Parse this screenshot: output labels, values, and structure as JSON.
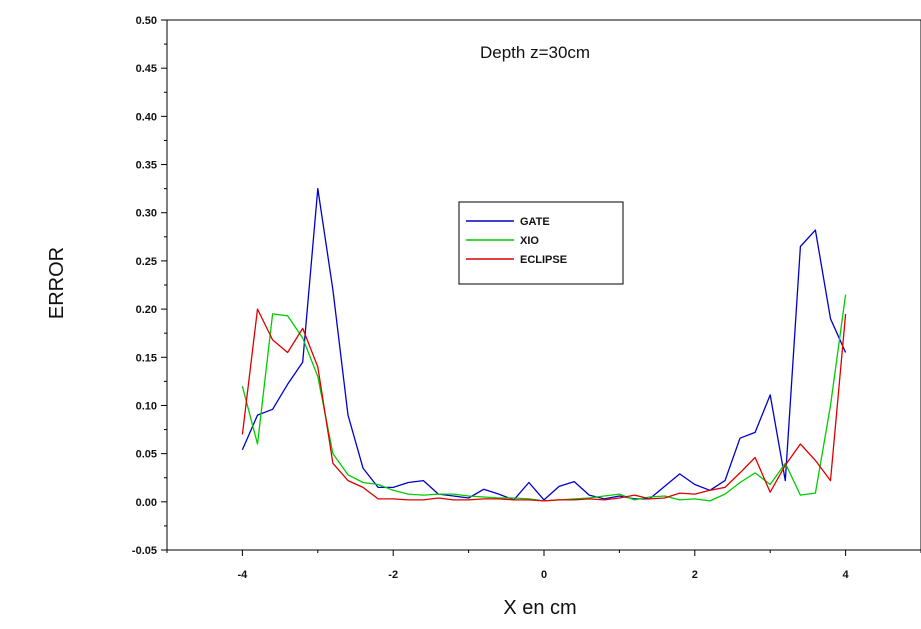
{
  "chart_data": {
    "type": "line",
    "annotation": "Depth z=30cm",
    "xlabel": "X en cm",
    "ylabel": "ERROR",
    "xlim": [
      -5.0,
      5.0
    ],
    "ylim": [
      -0.05,
      0.5
    ],
    "xticks": [
      -4,
      -2,
      0,
      2,
      4
    ],
    "xtick_labels": [
      "-4",
      "-2",
      "0",
      "2",
      "4"
    ],
    "yticks": [
      -0.05,
      0.0,
      0.05,
      0.1,
      0.15,
      0.2,
      0.25,
      0.3,
      0.35,
      0.4,
      0.45,
      0.5
    ],
    "ytick_labels": [
      "-0.05",
      "0.00",
      "0.05",
      "0.10",
      "0.15",
      "0.20",
      "0.25",
      "0.30",
      "0.35",
      "0.40",
      "0.45",
      "0.50"
    ],
    "grid": false,
    "legend_position": "center",
    "series": [
      {
        "name": "GATE",
        "color": "#0000cc",
        "x": [
          -4.0,
          -3.8,
          -3.6,
          -3.4,
          -3.2,
          -3.0,
          -2.8,
          -2.6,
          -2.4,
          -2.2,
          -2.0,
          -1.8,
          -1.6,
          -1.4,
          -1.2,
          -1.0,
          -0.8,
          -0.6,
          -0.4,
          -0.2,
          0.0,
          0.2,
          0.4,
          0.6,
          0.8,
          1.0,
          1.2,
          1.4,
          1.6,
          1.8,
          2.0,
          2.2,
          2.4,
          2.6,
          2.8,
          3.0,
          3.2,
          3.4,
          3.6,
          3.8,
          4.0
        ],
        "y": [
          0.054,
          0.09,
          0.096,
          0.122,
          0.145,
          0.325,
          0.22,
          0.09,
          0.035,
          0.015,
          0.015,
          0.02,
          0.022,
          0.008,
          0.006,
          0.004,
          0.013,
          0.008,
          0.002,
          0.02,
          0.002,
          0.016,
          0.021,
          0.007,
          0.003,
          0.006,
          0.003,
          0.003,
          0.016,
          0.029,
          0.018,
          0.012,
          0.022,
          0.066,
          0.072,
          0.111,
          0.022,
          0.265,
          0.282,
          0.19,
          0.155
        ]
      },
      {
        "name": "XIO",
        "color": "#00cc00",
        "x": [
          -4.0,
          -3.8,
          -3.6,
          -3.4,
          -3.2,
          -3.0,
          -2.8,
          -2.6,
          -2.4,
          -2.2,
          -2.0,
          -1.8,
          -1.6,
          -1.4,
          -1.2,
          -1.0,
          -0.8,
          -0.6,
          -0.4,
          -0.2,
          0.0,
          0.2,
          0.4,
          0.6,
          0.8,
          1.0,
          1.2,
          1.4,
          1.6,
          1.8,
          2.0,
          2.2,
          2.4,
          2.6,
          2.8,
          3.0,
          3.2,
          3.4,
          3.6,
          3.8,
          4.0
        ],
        "y": [
          0.12,
          0.06,
          0.195,
          0.193,
          0.17,
          0.13,
          0.05,
          0.028,
          0.02,
          0.018,
          0.012,
          0.008,
          0.007,
          0.008,
          0.008,
          0.006,
          0.005,
          0.004,
          0.004,
          0.003,
          0.001,
          0.002,
          0.003,
          0.004,
          0.006,
          0.008,
          0.002,
          0.005,
          0.006,
          0.002,
          0.003,
          0.001,
          0.008,
          0.02,
          0.03,
          0.018,
          0.04,
          0.007,
          0.009,
          0.1,
          0.215
        ]
      },
      {
        "name": "ECLIPSE",
        "color": "#dd0000",
        "x": [
          -4.0,
          -3.8,
          -3.6,
          -3.4,
          -3.2,
          -3.0,
          -2.8,
          -2.6,
          -2.4,
          -2.2,
          -2.0,
          -1.8,
          -1.6,
          -1.4,
          -1.2,
          -1.0,
          -0.8,
          -0.6,
          -0.4,
          -0.2,
          0.0,
          0.2,
          0.4,
          0.6,
          0.8,
          1.0,
          1.2,
          1.4,
          1.6,
          1.8,
          2.0,
          2.2,
          2.4,
          2.6,
          2.8,
          3.0,
          3.2,
          3.4,
          3.6,
          3.8,
          4.0
        ],
        "y": [
          0.07,
          0.2,
          0.168,
          0.155,
          0.18,
          0.14,
          0.04,
          0.022,
          0.015,
          0.003,
          0.003,
          0.002,
          0.002,
          0.004,
          0.002,
          0.002,
          0.003,
          0.003,
          0.002,
          0.002,
          0.001,
          0.002,
          0.002,
          0.003,
          0.002,
          0.004,
          0.007,
          0.003,
          0.004,
          0.009,
          0.008,
          0.012,
          0.015,
          0.03,
          0.046,
          0.01,
          0.038,
          0.06,
          0.043,
          0.022,
          0.195
        ]
      }
    ]
  }
}
